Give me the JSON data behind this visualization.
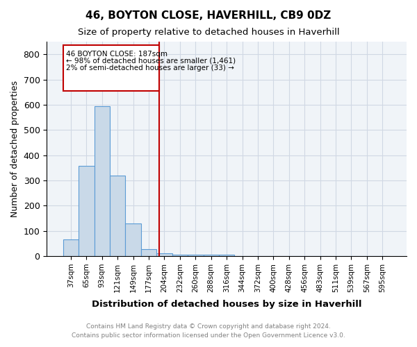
{
  "title1": "46, BOYTON CLOSE, HAVERHILL, CB9 0DZ",
  "title2": "Size of property relative to detached houses in Haverhill",
  "xlabel": "Distribution of detached houses by size in Haverhill",
  "ylabel": "Number of detached properties",
  "footer1": "Contains HM Land Registry data © Crown copyright and database right 2024.",
  "footer2": "Contains public sector information licensed under the Open Government Licence v3.0.",
  "bins": [
    "37sqm",
    "65sqm",
    "93sqm",
    "121sqm",
    "149sqm",
    "177sqm",
    "204sqm",
    "232sqm",
    "260sqm",
    "288sqm",
    "316sqm",
    "344sqm",
    "372sqm",
    "400sqm",
    "428sqm",
    "456sqm",
    "483sqm",
    "511sqm",
    "539sqm",
    "567sqm",
    "595sqm"
  ],
  "values": [
    65,
    358,
    595,
    320,
    130,
    28,
    10,
    5,
    5,
    5,
    5,
    0,
    0,
    0,
    0,
    0,
    0,
    0,
    0,
    0,
    0
  ],
  "bar_color": "#c9d9e8",
  "bar_edge_color": "#5b9bd5",
  "bar_width": 1.0,
  "ylim": [
    0,
    850
  ],
  "yticks": [
    0,
    100,
    200,
    300,
    400,
    500,
    600,
    700,
    800
  ],
  "vline_x": 5.68,
  "vline_color": "#c00000",
  "annotation_text_line1": "46 BOYTON CLOSE: 187sqm",
  "annotation_text_line2": "← 98% of detached houses are smaller (1,461)",
  "annotation_text_line3": "2% of semi-detached houses are larger (33) →",
  "grid_color": "#d0d8e4",
  "background_color": "#f0f4f8"
}
